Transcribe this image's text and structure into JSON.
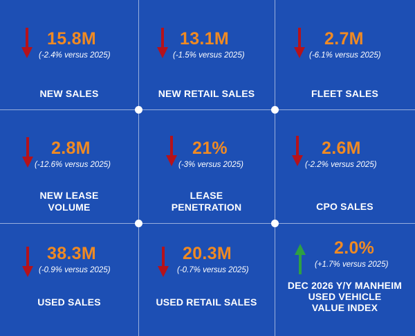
{
  "colors": {
    "background": "#1d4fb4",
    "value": "#f08a23",
    "down_arrow": "#b5121b",
    "up_arrow": "#2ea043",
    "text": "#ffffff"
  },
  "tiles": [
    {
      "value": "15.8M",
      "change": "(-2.4% versus 2025)",
      "label_lines": [
        "NEW SALES"
      ],
      "trend": "down",
      "icon": "down-arrow-icon"
    },
    {
      "value": "13.1M",
      "change": "(-1.5% versus 2025)",
      "label_lines": [
        "NEW RETAIL SALES"
      ],
      "trend": "down",
      "icon": "down-arrow-icon"
    },
    {
      "value": "2.7M",
      "change": "(-6.1% versus 2025)",
      "label_lines": [
        "FLEET SALES"
      ],
      "trend": "down",
      "icon": "down-arrow-icon"
    },
    {
      "value": "2.8M",
      "change": "(-12.6% versus 2025)",
      "label_lines": [
        "NEW LEASE",
        "VOLUME"
      ],
      "trend": "down",
      "icon": "down-arrow-icon"
    },
    {
      "value": "21%",
      "change": "(-3% versus 2025)",
      "label_lines": [
        "LEASE",
        "PENETRATION"
      ],
      "trend": "down",
      "icon": "down-arrow-icon"
    },
    {
      "value": "2.6M",
      "change": "(-2.2% versus 2025)",
      "label_lines": [
        "CPO SALES"
      ],
      "trend": "down",
      "icon": "down-arrow-icon"
    },
    {
      "value": "38.3M",
      "change": "(-0.9% versus 2025)",
      "label_lines": [
        "USED SALES"
      ],
      "trend": "down",
      "icon": "down-arrow-icon"
    },
    {
      "value": "20.3M",
      "change": "(-0.7% versus 2025)",
      "label_lines": [
        "USED RETAIL SALES"
      ],
      "trend": "down",
      "icon": "down-arrow-icon"
    },
    {
      "value": "2.0%",
      "change": "(+1.7% versus 2025)",
      "label_lines": [
        "DEC 2026 Y/Y MANHEIM",
        "USED VEHICLE",
        "VALUE INDEX"
      ],
      "trend": "up",
      "icon": "up-arrow-icon"
    }
  ]
}
